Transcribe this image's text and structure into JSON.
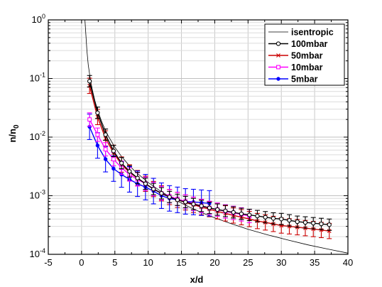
{
  "chart_data": {
    "type": "line",
    "title": "",
    "xlabel": "x/d",
    "ylabel_main": "n/n",
    "ylabel_sub": "0",
    "xlim": [
      -5,
      40
    ],
    "ylim": [
      0.0001,
      1
    ],
    "yscale": "log",
    "grid": true,
    "legend_position": "top-right",
    "x_ticks": [
      "-5",
      "0",
      "5",
      "10",
      "15",
      "20",
      "25",
      "30",
      "35",
      "40"
    ],
    "y_ticks": [
      {
        "base": "10",
        "exp": "0"
      },
      {
        "base": "10",
        "exp": "-1"
      },
      {
        "base": "10",
        "exp": "-2"
      },
      {
        "base": "10",
        "exp": "-3"
      },
      {
        "base": "10",
        "exp": "-4"
      }
    ],
    "isentropic": {
      "name": "isentropic",
      "color": "#000000",
      "x": [
        0.5,
        0.8,
        1.0,
        1.3,
        1.6,
        2.0,
        2.5,
        3.0,
        3.5,
        4.0,
        5.0,
        6.0,
        7.0,
        8.0,
        10.0,
        12.0,
        14.0,
        16.0,
        18.0,
        20.0,
        22.0,
        25.0,
        28.0,
        31.0,
        34.0,
        37.0,
        40.0
      ],
      "y": [
        1.0,
        0.3,
        0.17,
        0.1,
        0.065,
        0.042,
        0.027,
        0.0187,
        0.0137,
        0.0105,
        0.0067,
        0.00467,
        0.00343,
        0.00262,
        0.00168,
        0.00117,
        0.000857,
        0.000656,
        0.000518,
        0.00042,
        0.000347,
        0.000268,
        0.000214,
        0.000175,
        0.000145,
        0.000123,
        0.000105
      ]
    },
    "series": [
      {
        "name": "100mbar",
        "color": "#000000",
        "marker": "circle",
        "x": [
          1.2,
          2.4,
          3.6,
          4.8,
          6.0,
          7.2,
          8.4,
          9.6,
          10.8,
          12.0,
          13.2,
          14.4,
          15.6,
          16.8,
          18.0,
          19.2,
          20.4,
          21.6,
          22.8,
          24.0,
          25.2,
          26.4,
          27.6,
          28.8,
          30.0,
          31.2,
          32.4,
          33.6,
          34.8,
          36.0,
          37.2
        ],
        "y": [
          0.09,
          0.026,
          0.011,
          0.0058,
          0.0036,
          0.0026,
          0.002,
          0.0016,
          0.0013,
          0.0011,
          0.00095,
          0.00085,
          0.00078,
          0.00072,
          0.00067,
          0.00062,
          0.00058,
          0.00055,
          0.00052,
          0.00049,
          0.00047,
          0.00045,
          0.00043,
          0.00041,
          0.0004,
          0.00038,
          0.00036,
          0.00035,
          0.00034,
          0.00033,
          0.00032
        ],
        "err_factor": 1.25
      },
      {
        "name": "50mbar",
        "color": "#cc0000",
        "marker": "cross",
        "x": [
          1.2,
          2.4,
          3.6,
          4.8,
          6.0,
          7.2,
          8.4,
          9.6,
          10.8,
          12.0,
          13.2,
          14.4,
          15.6,
          16.8,
          18.0,
          19.2,
          20.4,
          21.6,
          22.8,
          24.0,
          25.2,
          26.4,
          27.6,
          28.8,
          30.0,
          31.2,
          32.4,
          33.6,
          34.8,
          36.0,
          37.2
        ],
        "y": [
          0.075,
          0.022,
          0.0095,
          0.0054,
          0.0034,
          0.0025,
          0.002,
          0.0016,
          0.0013,
          0.0011,
          0.00095,
          0.00085,
          0.00077,
          0.0007,
          0.00064,
          0.00059,
          0.00054,
          0.0005,
          0.00046,
          0.00043,
          0.0004,
          0.00037,
          0.00035,
          0.00033,
          0.00031,
          0.0003,
          0.00029,
          0.00028,
          0.00027,
          0.00026,
          0.00025
        ],
        "err_factor": 1.35
      },
      {
        "name": "10mbar",
        "color": "#ff00ff",
        "marker": "square",
        "x": [
          1.2,
          2.4,
          3.6,
          4.8,
          6.0,
          7.2,
          8.4,
          9.6,
          10.8,
          12.0,
          13.2,
          14.4,
          15.6,
          16.8,
          18.0,
          19.2,
          20.4,
          21.6,
          22.8,
          24.0,
          25.2
        ],
        "y": [
          0.02,
          0.011,
          0.0062,
          0.0042,
          0.003,
          0.0023,
          0.0019,
          0.0016,
          0.0013,
          0.0011,
          0.00098,
          0.00088,
          0.0008,
          0.00073,
          0.00067,
          0.00062,
          0.00058,
          0.00054,
          0.00051,
          0.00048,
          0.00045
        ],
        "err_factor": 1.3
      },
      {
        "name": "5mbar",
        "color": "#0000ff",
        "marker": "dot",
        "x": [
          1.2,
          2.4,
          3.6,
          4.8,
          6.0,
          7.2,
          8.4,
          9.6,
          10.8,
          12.0,
          13.2,
          14.4,
          15.6,
          16.8,
          18.0,
          19.2
        ],
        "y": [
          0.015,
          0.0072,
          0.0042,
          0.0029,
          0.0023,
          0.0019,
          0.0016,
          0.0014,
          0.0012,
          0.001,
          0.0009,
          0.00085,
          0.0008,
          0.00078,
          0.00076,
          0.00074
        ],
        "err_factor": 1.65
      }
    ]
  }
}
